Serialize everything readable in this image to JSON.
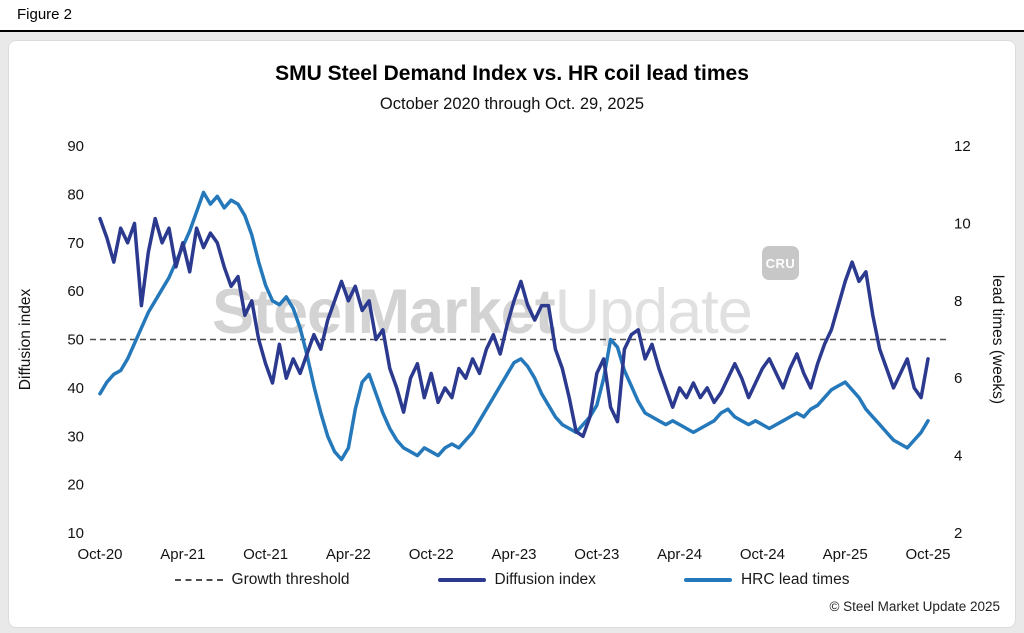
{
  "figure_label": "Figure 2",
  "copyright": "© Steel Market Update 2025",
  "watermark": {
    "bold": "SteelMarket",
    "light": "Update",
    "badge": "CRU"
  },
  "chart_data": {
    "type": "line",
    "title": "SMU Steel Demand Index vs. HR coil lead times",
    "subtitle": "October 2020 through Oct. 29, 2025",
    "x_tick_labels": [
      "Oct-20",
      "Apr-21",
      "Oct-21",
      "Apr-22",
      "Oct-22",
      "Apr-23",
      "Oct-23",
      "Apr-24",
      "Oct-24",
      "Apr-25",
      "Oct-25"
    ],
    "left_axis": {
      "label": "Diffusion index",
      "min": 10,
      "max": 90,
      "ticks": [
        90,
        80,
        70,
        60,
        50,
        40,
        30,
        20,
        10
      ]
    },
    "right_axis": {
      "label": "lead times (weeks)",
      "min": 2,
      "max": 12,
      "ticks": [
        12,
        10,
        8,
        6,
        4,
        2
      ]
    },
    "threshold": {
      "label": "Growth threshold",
      "axis": "left",
      "value": 50,
      "style": "dashed"
    },
    "colors": {
      "diffusion": "#2b3a8f",
      "lead_times": "#2579bb",
      "threshold": "#4d4d4d"
    },
    "legend": [
      {
        "label": "Growth threshold",
        "swatch": "dashed-gray"
      },
      {
        "label": "Diffusion index",
        "swatch": "navy"
      },
      {
        "label": "HRC lead times",
        "swatch": "blue"
      }
    ],
    "grid": false,
    "legend_position": "bottom",
    "x_sampling": "evenly spaced, Oct-2020 through Oct-2025",
    "series": [
      {
        "name": "Diffusion index",
        "axis": "left",
        "color_key": "diffusion",
        "values": [
          75,
          71,
          66,
          73,
          70,
          74,
          57,
          68,
          75,
          70,
          73,
          65,
          70,
          64,
          73,
          69,
          72,
          70,
          65,
          61,
          63,
          55,
          58,
          50,
          45,
          41,
          49,
          42,
          46,
          43,
          47,
          51,
          48,
          54,
          58,
          62,
          58,
          61,
          56,
          58,
          50,
          52,
          44,
          40,
          35,
          42,
          45,
          38,
          43,
          37,
          40,
          38,
          44,
          42,
          46,
          43,
          48,
          51,
          47,
          53,
          58,
          62,
          57,
          54,
          57,
          57,
          48,
          44,
          38,
          31,
          30,
          34,
          43,
          46,
          36,
          33,
          48,
          51,
          52,
          46,
          49,
          44,
          40,
          36,
          40,
          38,
          41,
          38,
          40,
          37,
          39,
          42,
          45,
          42,
          38,
          41,
          44,
          46,
          43,
          40,
          44,
          47,
          43,
          40,
          45,
          49,
          52,
          57,
          62,
          66,
          62,
          64,
          55,
          48,
          44,
          40,
          43,
          46,
          40,
          38,
          46
        ]
      },
      {
        "name": "HRC lead times",
        "axis": "right",
        "color_key": "lead_times",
        "values": [
          5.6,
          5.9,
          6.1,
          6.2,
          6.5,
          6.9,
          7.3,
          7.7,
          8.0,
          8.3,
          8.6,
          9.0,
          9.4,
          9.8,
          10.3,
          10.8,
          10.5,
          10.7,
          10.4,
          10.6,
          10.5,
          10.2,
          9.7,
          9.0,
          8.4,
          8.0,
          7.9,
          8.1,
          7.8,
          7.3,
          6.6,
          5.8,
          5.1,
          4.5,
          4.1,
          3.9,
          4.2,
          5.2,
          5.9,
          6.1,
          5.6,
          5.1,
          4.7,
          4.4,
          4.2,
          4.1,
          4.0,
          4.2,
          4.1,
          4.0,
          4.2,
          4.3,
          4.2,
          4.4,
          4.6,
          4.9,
          5.2,
          5.5,
          5.8,
          6.1,
          6.4,
          6.5,
          6.3,
          6.0,
          5.6,
          5.3,
          5.0,
          4.8,
          4.7,
          4.6,
          4.8,
          5.0,
          5.3,
          6.0,
          7.0,
          6.8,
          6.2,
          5.8,
          5.4,
          5.1,
          5.0,
          4.9,
          4.8,
          4.9,
          4.8,
          4.7,
          4.6,
          4.7,
          4.8,
          4.9,
          5.1,
          5.2,
          5.0,
          4.9,
          4.8,
          4.9,
          4.8,
          4.7,
          4.8,
          4.9,
          5.0,
          5.1,
          5.0,
          5.2,
          5.3,
          5.5,
          5.7,
          5.8,
          5.9,
          5.7,
          5.5,
          5.2,
          5.0,
          4.8,
          4.6,
          4.4,
          4.3,
          4.2,
          4.4,
          4.6,
          4.9
        ]
      }
    ]
  }
}
